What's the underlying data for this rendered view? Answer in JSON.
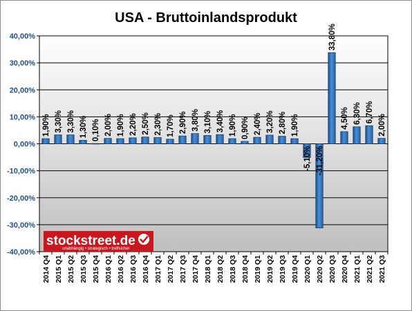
{
  "chart_data": {
    "type": "bar",
    "title": "USA - Bruttoinlandsprodukt",
    "xlabel": "",
    "ylabel": "",
    "ylim": [
      -40,
      40
    ],
    "yticks": [
      "40,00%",
      "30,00%",
      "20,00%",
      "10,00%",
      "0,00%",
      "-10,00%",
      "-20,00%",
      "-30,00%",
      "-40,00%"
    ],
    "grid": true,
    "legend": "none",
    "categories": [
      "2014 Q4",
      "2015 Q1",
      "2015 Q2",
      "2015 Q3",
      "2015 Q4",
      "2016 Q1",
      "2016 Q2",
      "2016 Q3",
      "2016 Q4",
      "2017 Q1",
      "2017 Q2",
      "2017 Q3",
      "2017 Q4",
      "2018 Q1",
      "2018 Q2",
      "2018 Q3",
      "2018 Q4",
      "2019 Q1",
      "2019 Q2",
      "2019 Q3",
      "2019 Q4",
      "2020 Q1",
      "2020 Q2",
      "2020 Q3",
      "2020 Q4",
      "2021 Q1",
      "2021 Q2",
      "2021 Q3"
    ],
    "values": [
      1.9,
      3.3,
      3.3,
      1.3,
      0.1,
      2.0,
      1.9,
      2.2,
      2.5,
      2.3,
      1.7,
      2.9,
      3.8,
      3.1,
      3.4,
      1.9,
      0.9,
      2.4,
      3.2,
      2.8,
      1.9,
      -5.1,
      -31.2,
      33.8,
      4.5,
      6.3,
      6.7,
      2.0
    ],
    "labels": [
      "1,90%",
      "3,30%",
      "3,30%",
      "1,30%",
      "0,10%",
      "2,00%",
      "1,90%",
      "2,20%",
      "2,50%",
      "2,30%",
      "1,70%",
      "2,90%",
      "3,80%",
      "3,10%",
      "3,40%",
      "1,90%",
      "0,90%",
      "2,40%",
      "3,20%",
      "2,80%",
      "1,90%",
      "-5,10%",
      "-31,20%",
      "33,80%",
      "4,50%",
      "6,30%",
      "6,70%",
      "2,00%"
    ],
    "colors": {
      "bar": "#2e75c6",
      "bar_edge": "#1f3f66",
      "plot_bg_top": "#ffffff",
      "plot_bg_bottom": "#bfbfbf",
      "grid": "#000000",
      "tick_text": "#1f4e8c"
    }
  },
  "logo": {
    "main": "stockstreet.de",
    "tagline": "unabhängig • strategisch • treffsicher",
    "color": "#c8171e",
    "badge_icon": "checkmark-icon"
  }
}
